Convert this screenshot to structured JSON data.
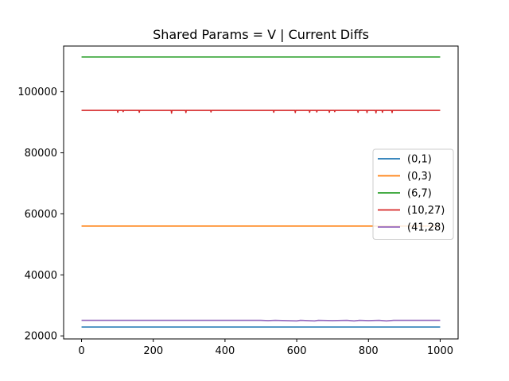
{
  "chart_data": {
    "type": "line",
    "title": "Shared Params = V | Current Diffs",
    "xlabel": "",
    "ylabel": "",
    "xlim": [
      -50,
      1050
    ],
    "ylim": [
      19000,
      115000
    ],
    "xticks": [
      0,
      200,
      400,
      600,
      800,
      1000
    ],
    "yticks": [
      20000,
      40000,
      60000,
      80000,
      100000
    ],
    "grid": false,
    "legend_position": "center-right",
    "x": [
      0,
      1000
    ],
    "series": [
      {
        "name": "(0,1)",
        "color": "#1f77b4",
        "points": [
          [
            0,
            22900
          ],
          [
            1000,
            22900
          ]
        ]
      },
      {
        "name": "(0,3)",
        "color": "#ff7f0e",
        "points": [
          [
            0,
            56000
          ],
          [
            1000,
            56000
          ]
        ]
      },
      {
        "name": "(6,7)",
        "color": "#2ca02c",
        "points": [
          [
            0,
            111400
          ],
          [
            1000,
            111400
          ]
        ]
      },
      {
        "name": "(10,27)",
        "color": "#d62728",
        "points": [
          [
            0,
            93900
          ],
          [
            100,
            93900
          ],
          [
            101,
            93300
          ],
          [
            102,
            93900
          ],
          [
            115,
            93900
          ],
          [
            116,
            93500
          ],
          [
            117,
            93900
          ],
          [
            160,
            93900
          ],
          [
            161,
            93300
          ],
          [
            162,
            93900
          ],
          [
            250,
            93900
          ],
          [
            251,
            93000
          ],
          [
            252,
            93900
          ],
          [
            290,
            93900
          ],
          [
            291,
            93200
          ],
          [
            292,
            93900
          ],
          [
            360,
            93900
          ],
          [
            361,
            93400
          ],
          [
            362,
            93900
          ],
          [
            535,
            93900
          ],
          [
            536,
            93300
          ],
          [
            537,
            93900
          ],
          [
            595,
            93900
          ],
          [
            596,
            93200
          ],
          [
            597,
            93900
          ],
          [
            635,
            93900
          ],
          [
            636,
            93300
          ],
          [
            637,
            93900
          ],
          [
            655,
            93900
          ],
          [
            656,
            93400
          ],
          [
            657,
            93900
          ],
          [
            690,
            93900
          ],
          [
            691,
            93300
          ],
          [
            692,
            93900
          ],
          [
            705,
            93900
          ],
          [
            706,
            93500
          ],
          [
            707,
            93900
          ],
          [
            770,
            93900
          ],
          [
            771,
            93300
          ],
          [
            772,
            93900
          ],
          [
            795,
            93900
          ],
          [
            796,
            93200
          ],
          [
            797,
            93900
          ],
          [
            820,
            93900
          ],
          [
            821,
            93100
          ],
          [
            822,
            93900
          ],
          [
            838,
            93900
          ],
          [
            839,
            93300
          ],
          [
            840,
            93900
          ],
          [
            865,
            93900
          ],
          [
            866,
            93200
          ],
          [
            867,
            93900
          ],
          [
            1000,
            93900
          ]
        ]
      },
      {
        "name": "(41,28)",
        "color": "#9467bd",
        "points": [
          [
            0,
            25100
          ],
          [
            500,
            25100
          ],
          [
            520,
            25000
          ],
          [
            540,
            25100
          ],
          [
            600,
            24900
          ],
          [
            610,
            25100
          ],
          [
            650,
            24900
          ],
          [
            660,
            25100
          ],
          [
            700,
            25000
          ],
          [
            740,
            25100
          ],
          [
            760,
            24900
          ],
          [
            775,
            25100
          ],
          [
            800,
            25000
          ],
          [
            830,
            25100
          ],
          [
            850,
            24900
          ],
          [
            870,
            25100
          ],
          [
            1000,
            25100
          ]
        ]
      }
    ]
  }
}
